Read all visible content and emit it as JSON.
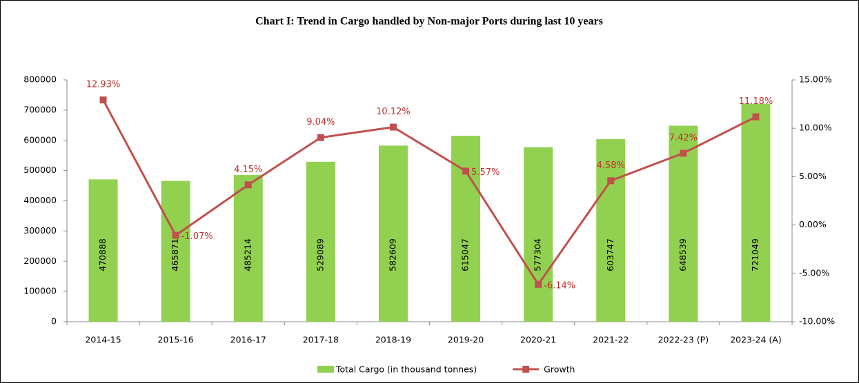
{
  "chart_data": {
    "type": "combo",
    "title": "Chart I: Trend in Cargo handled by Non-major Ports during last 10 years",
    "categories": [
      "2014-15",
      "2015-16",
      "2016-17",
      "2017-18",
      "2018-19",
      "2019-20",
      "2020-21",
      "2021-22",
      "2022-23 (P)",
      "2023-24 (A)"
    ],
    "series": [
      {
        "name": "Total Cargo (in thousand tonnes)",
        "type": "bar",
        "color": "#92d050",
        "values": [
          470888,
          465871,
          485214,
          529089,
          582609,
          615047,
          577304,
          603747,
          648539,
          721049
        ]
      },
      {
        "name": "Growth",
        "type": "line",
        "axis": "y2",
        "color": "#c0504d",
        "values": [
          12.93,
          -1.07,
          4.15,
          9.04,
          10.12,
          5.57,
          -6.14,
          4.58,
          7.42,
          11.18
        ],
        "value_labels": [
          "12.93%",
          "-1.07%",
          "4.15%",
          "9.04%",
          "10.12%",
          "5.57%",
          "-6.14%",
          "4.58%",
          "7.42%",
          "11.18%"
        ]
      }
    ],
    "ylim": [
      0,
      800000
    ],
    "yticks": [
      0,
      100000,
      200000,
      300000,
      400000,
      500000,
      600000,
      700000,
      800000
    ],
    "y2lim": [
      -10,
      15
    ],
    "y2ticks": [
      {
        "value": -10,
        "label": "-10.00%"
      },
      {
        "value": -5,
        "label": "-5.00%"
      },
      {
        "value": 0,
        "label": "0.00%"
      },
      {
        "value": 5,
        "label": "5.00%"
      },
      {
        "value": 10,
        "label": "10.00%"
      },
      {
        "value": 15,
        "label": "15.00%"
      }
    ],
    "legend": "bottom",
    "grid": false
  }
}
